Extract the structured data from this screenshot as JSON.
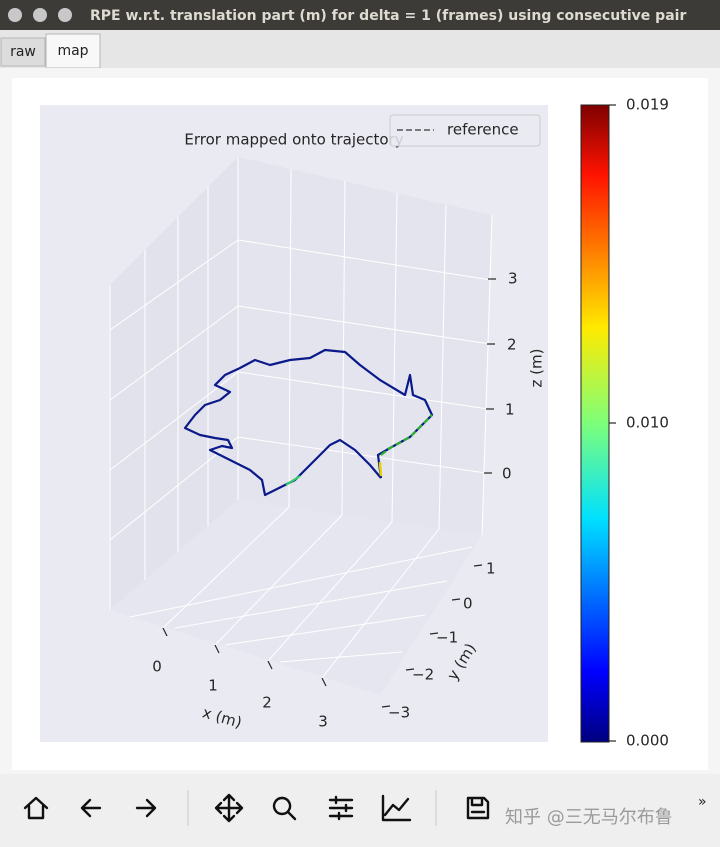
{
  "window": {
    "title": "RPE w.r.t. translation part (m) for delta = 1 (frames) using consecutive pair"
  },
  "tabs": [
    "raw",
    "map"
  ],
  "plot": {
    "title": "Error mapped onto trajectory",
    "legend": "reference",
    "x_axis": {
      "label": "x (m)",
      "ticks": [
        "0",
        "1",
        "2",
        "3"
      ]
    },
    "y_axis": {
      "label": "y (m)",
      "ticks": [
        "1",
        "0",
        "−1",
        "−2",
        "−3"
      ]
    },
    "z_axis": {
      "label": "z (m)",
      "ticks": [
        "3",
        "2",
        "1",
        "0"
      ]
    },
    "colorbar": {
      "ticks": [
        "0.019",
        "0.010",
        "0.000"
      ]
    }
  },
  "toolbar": {
    "watermark": "知乎 @三无马尔布鲁",
    "overflow": "»"
  }
}
